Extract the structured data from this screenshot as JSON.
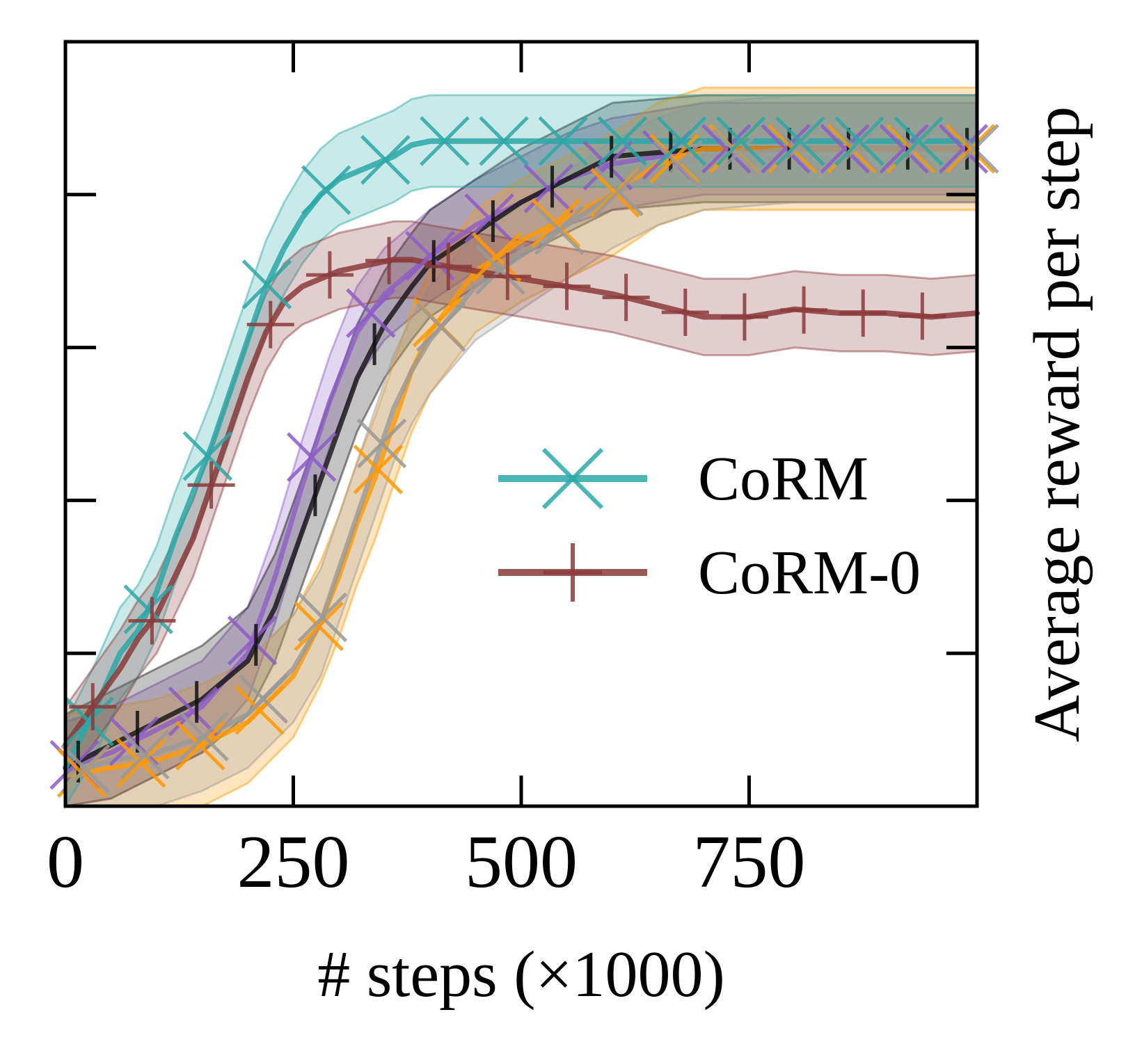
{
  "chart_data": {
    "type": "line",
    "title": "",
    "xlabel": "# steps (×1000)",
    "ylabel": "Average reward per step",
    "xlim": [
      0,
      1000
    ],
    "ylim": [
      0,
      1
    ],
    "xticks": [
      0,
      250,
      500,
      750
    ],
    "xtick_labels": [
      "0",
      "250",
      "500",
      "750"
    ],
    "yticks": [
      0.2,
      0.4,
      0.6,
      0.8
    ],
    "legend": {
      "position": "center-right",
      "entries": [
        "CoRM",
        "CoRM-0"
      ]
    },
    "series": [
      {
        "name": "CoRM",
        "in_legend": true,
        "color": "#2ca7a7",
        "marker": "x",
        "x": [
          0,
          30,
          60,
          80,
          100,
          120,
          140,
          160,
          180,
          200,
          220,
          240,
          260,
          280,
          300,
          320,
          340,
          360,
          380,
          400,
          450,
          500,
          600,
          700,
          800,
          900,
          1000
        ],
        "y": [
          0.05,
          0.12,
          0.2,
          0.23,
          0.28,
          0.35,
          0.41,
          0.47,
          0.54,
          0.61,
          0.68,
          0.73,
          0.77,
          0.8,
          0.82,
          0.83,
          0.84,
          0.85,
          0.865,
          0.87,
          0.87,
          0.87,
          0.87,
          0.87,
          0.87,
          0.87,
          0.87
        ],
        "band": 0.06
      },
      {
        "name": "CoRM-0",
        "in_legend": true,
        "color": "#8b3a3a",
        "marker": "+",
        "x": [
          0,
          30,
          60,
          80,
          100,
          120,
          140,
          160,
          180,
          200,
          220,
          240,
          260,
          280,
          300,
          320,
          340,
          360,
          380,
          400,
          450,
          500,
          550,
          600,
          650,
          700,
          750,
          800,
          850,
          900,
          950,
          1000
        ],
        "y": [
          0.08,
          0.13,
          0.18,
          0.22,
          0.25,
          0.3,
          0.35,
          0.42,
          0.49,
          0.56,
          0.62,
          0.66,
          0.68,
          0.69,
          0.7,
          0.705,
          0.71,
          0.715,
          0.715,
          0.71,
          0.7,
          0.69,
          0.68,
          0.67,
          0.655,
          0.64,
          0.64,
          0.65,
          0.645,
          0.645,
          0.64,
          0.645
        ],
        "band": 0.05
      },
      {
        "name": "baseline-purple",
        "in_legend": false,
        "color": "#8e5cc7",
        "marker": "x",
        "x": [
          0,
          50,
          100,
          150,
          200,
          230,
          260,
          290,
          320,
          350,
          380,
          400,
          450,
          500,
          550,
          600,
          650,
          700,
          800,
          900,
          1000
        ],
        "y": [
          0.05,
          0.07,
          0.1,
          0.13,
          0.2,
          0.3,
          0.42,
          0.53,
          0.62,
          0.67,
          0.7,
          0.72,
          0.76,
          0.79,
          0.82,
          0.84,
          0.85,
          0.86,
          0.86,
          0.86,
          0.86
        ],
        "band": 0.06
      },
      {
        "name": "baseline-black",
        "in_legend": false,
        "color": "#111111",
        "marker": "|",
        "x": [
          0,
          50,
          100,
          150,
          200,
          230,
          260,
          290,
          320,
          350,
          380,
          400,
          450,
          500,
          550,
          600,
          650,
          700,
          800,
          900,
          1000
        ],
        "y": [
          0.05,
          0.08,
          0.11,
          0.14,
          0.19,
          0.26,
          0.36,
          0.46,
          0.56,
          0.63,
          0.68,
          0.71,
          0.75,
          0.79,
          0.82,
          0.85,
          0.855,
          0.86,
          0.86,
          0.86,
          0.86
        ],
        "band": 0.07
      },
      {
        "name": "baseline-orange",
        "in_legend": false,
        "color": "#ff9900",
        "marker": "x",
        "x": [
          0,
          50,
          100,
          150,
          200,
          250,
          280,
          300,
          320,
          340,
          360,
          380,
          400,
          450,
          500,
          550,
          600,
          650,
          700,
          800,
          900,
          1000
        ],
        "y": [
          0.04,
          0.05,
          0.06,
          0.08,
          0.11,
          0.17,
          0.24,
          0.3,
          0.37,
          0.43,
          0.5,
          0.57,
          0.62,
          0.7,
          0.74,
          0.77,
          0.8,
          0.84,
          0.86,
          0.86,
          0.86,
          0.86
        ],
        "band": 0.08
      },
      {
        "name": "baseline-gray",
        "in_legend": false,
        "color": "#999999",
        "marker": "x",
        "x": [
          0,
          50,
          100,
          150,
          200,
          250,
          280,
          300,
          320,
          340,
          360,
          380,
          400,
          450,
          500,
          550,
          600,
          650,
          700,
          800,
          900,
          1000
        ],
        "y": [
          0.04,
          0.06,
          0.07,
          0.09,
          0.12,
          0.18,
          0.24,
          0.31,
          0.38,
          0.45,
          0.52,
          0.57,
          0.61,
          0.68,
          0.72,
          0.76,
          0.8,
          0.83,
          0.85,
          0.86,
          0.86,
          0.86
        ],
        "band": 0.07
      }
    ]
  }
}
